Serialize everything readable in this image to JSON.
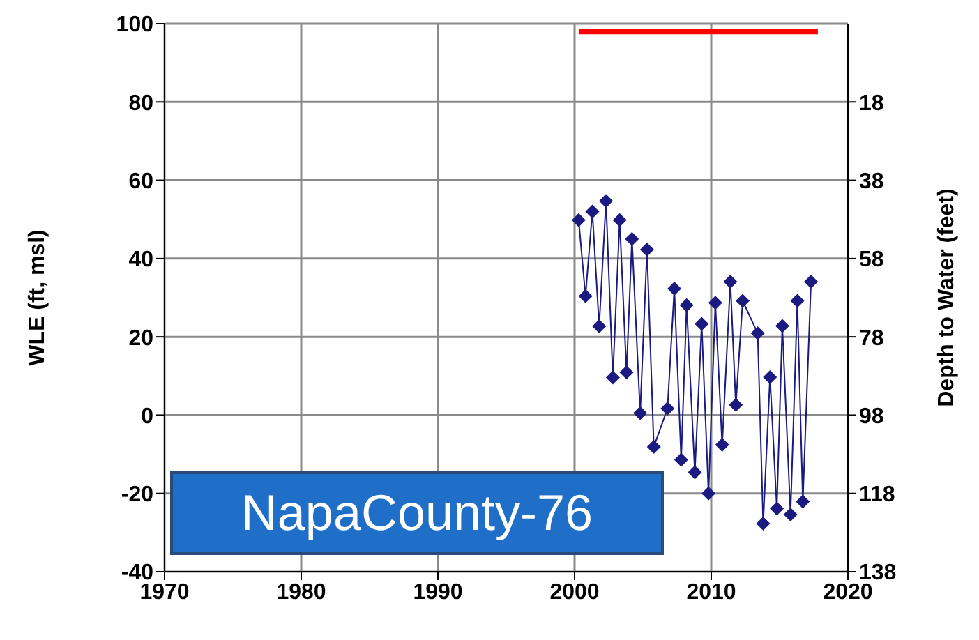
{
  "chart_data": {
    "type": "line",
    "ylabel": "WLE (ft, msl)",
    "y2label": "Depth to Water (feet)",
    "xlim": [
      1970,
      2020
    ],
    "xticks": [
      1970,
      1980,
      1990,
      2000,
      2010,
      2020
    ],
    "ylim": [
      -40,
      100
    ],
    "yticks": [
      -40,
      -20,
      0,
      20,
      40,
      60,
      80,
      100
    ],
    "y2lim": [
      138,
      -2
    ],
    "y2ticks": [
      18,
      38,
      58,
      78,
      98,
      118,
      138
    ],
    "grid": true,
    "marker": "diamond",
    "annotations": [
      "NapaCounty-76"
    ],
    "series": [
      {
        "color": "#1a1a80",
        "x": [
          2000.3,
          2000.8,
          2001.3,
          2001.8,
          2002.3,
          2002.8,
          2003.3,
          2003.8,
          2004.2,
          2004.8,
          2005.3,
          2005.8,
          2006.8,
          2007.3,
          2007.8,
          2008.2,
          2008.8,
          2009.3,
          2009.8,
          2010.3,
          2010.8,
          2011.4,
          2011.8,
          2012.3,
          2013.4,
          2013.8,
          2014.3,
          2014.8,
          2015.2,
          2015.8,
          2016.3,
          2016.7,
          2017.3
        ],
        "values": [
          49.8,
          30.4,
          52,
          22.7,
          54.7,
          9.6,
          49.8,
          10.9,
          45,
          0.5,
          42.3,
          -8.1,
          1.7,
          32.3,
          -11.4,
          28.1,
          -14.6,
          23.3,
          -20,
          28.7,
          -7.6,
          34.1,
          2.6,
          29.2,
          20.9,
          -27.7,
          9.7,
          -23.9,
          22.8,
          -25.4,
          29.2,
          -22.1,
          34.1
        ]
      },
      {
        "color": "#ff0000",
        "marker": "none",
        "x": [
          2000.3,
          2017.8
        ],
        "values": [
          98,
          98
        ]
      }
    ]
  }
}
